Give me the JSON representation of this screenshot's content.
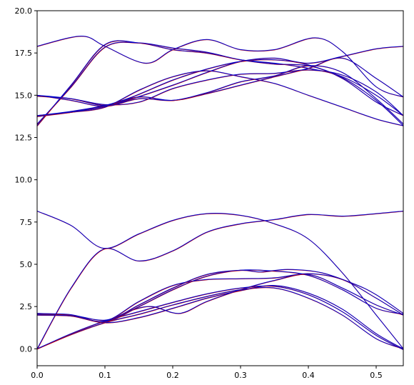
{
  "chart_data": {
    "type": "line",
    "title": "",
    "xlabel": "",
    "ylabel": "",
    "xlim": [
      0.0,
      0.54
    ],
    "ylim": [
      -1.0,
      20.0
    ],
    "x_ticks": [
      {
        "value": 0.0,
        "label": "0.0"
      },
      {
        "value": 0.1,
        "label": "0.1"
      },
      {
        "value": 0.2,
        "label": "0.2"
      },
      {
        "value": 0.3,
        "label": "0.3"
      },
      {
        "value": 0.4,
        "label": "0.4"
      },
      {
        "value": 0.5,
        "label": "0.5"
      }
    ],
    "y_ticks": [
      {
        "value": 0.0,
        "label": "0.0"
      },
      {
        "value": 2.5,
        "label": "2.5"
      },
      {
        "value": 5.0,
        "label": "5.0"
      },
      {
        "value": 7.5,
        "label": "7.5"
      },
      {
        "value": 10.0,
        "label": "10.0"
      },
      {
        "value": 12.5,
        "label": "12.5"
      },
      {
        "value": 15.0,
        "label": "15.0"
      },
      {
        "value": 17.5,
        "label": "17.5"
      },
      {
        "value": 20.0,
        "label": "20.0"
      }
    ],
    "grid": false,
    "series_color_primary": "#0000cc",
    "series_color_overlay": "#cc0000",
    "series": [
      {
        "x": [
          0.0,
          0.05,
          0.1,
          0.15,
          0.2,
          0.25,
          0.3,
          0.35,
          0.4,
          0.45,
          0.5,
          0.54
        ],
        "y": [
          0.0,
          0.85,
          1.55,
          2.05,
          2.6,
          3.1,
          3.5,
          3.6,
          3.0,
          2.0,
          0.6,
          0.0
        ]
      },
      {
        "x": [
          0.0,
          0.05,
          0.1,
          0.15,
          0.2,
          0.25,
          0.3,
          0.35,
          0.4,
          0.45,
          0.5,
          0.54
        ],
        "y": [
          0.0,
          0.9,
          1.65,
          2.2,
          2.75,
          3.25,
          3.6,
          3.7,
          3.2,
          2.2,
          0.8,
          -0.05
        ]
      },
      {
        "x": [
          0.0,
          0.05,
          0.1,
          0.15,
          0.2,
          0.25,
          0.3,
          0.35,
          0.4,
          0.45,
          0.5,
          0.54
        ],
        "y": [
          2.05,
          1.95,
          1.55,
          1.85,
          2.4,
          3.0,
          3.45,
          3.75,
          3.3,
          2.35,
          0.9,
          0.0
        ]
      },
      {
        "x": [
          0.0,
          0.05,
          0.1,
          0.14,
          0.17,
          0.21,
          0.25,
          0.3,
          0.35,
          0.4,
          0.45,
          0.5,
          0.54
        ],
        "y": [
          2.1,
          2.0,
          1.7,
          2.3,
          2.5,
          2.1,
          2.8,
          3.5,
          4.05,
          4.4,
          3.6,
          2.6,
          2.0
        ]
      },
      {
        "x": [
          0.0,
          0.05,
          0.1,
          0.15,
          0.2,
          0.25,
          0.3,
          0.35,
          0.4,
          0.45,
          0.5,
          0.54
        ],
        "y": [
          2.05,
          2.0,
          1.6,
          2.5,
          3.5,
          4.3,
          4.65,
          4.6,
          4.35,
          3.5,
          2.4,
          2.05
        ]
      },
      {
        "x": [
          0.0,
          0.05,
          0.1,
          0.15,
          0.2,
          0.25,
          0.3,
          0.35,
          0.4,
          0.45,
          0.5,
          0.54
        ],
        "y": [
          2.0,
          1.95,
          1.65,
          2.8,
          3.75,
          4.1,
          4.15,
          4.2,
          4.45,
          4.1,
          3.0,
          2.0
        ]
      },
      {
        "x": [
          0.0,
          0.05,
          0.1,
          0.15,
          0.2,
          0.25,
          0.3,
          0.33,
          0.37,
          0.42,
          0.47,
          0.5,
          0.54
        ],
        "y": [
          2.08,
          2.02,
          1.62,
          2.6,
          3.6,
          4.4,
          4.65,
          4.55,
          4.7,
          4.5,
          3.8,
          3.2,
          2.1
        ]
      },
      {
        "x": [
          0.0,
          0.05,
          0.098,
          0.15,
          0.2,
          0.25,
          0.3,
          0.35,
          0.4,
          0.45,
          0.5,
          0.54
        ],
        "y": [
          0.0,
          3.6,
          5.9,
          5.2,
          5.8,
          6.9,
          7.4,
          7.65,
          7.95,
          7.85,
          8.0,
          8.15
        ]
      },
      {
        "x": [
          0.0,
          0.05,
          0.098,
          0.15,
          0.2,
          0.25,
          0.3,
          0.35,
          0.4,
          0.45,
          0.5,
          0.54
        ],
        "y": [
          8.15,
          7.3,
          5.95,
          6.8,
          7.6,
          8.0,
          7.9,
          7.4,
          6.5,
          4.5,
          2.0,
          0.0
        ]
      },
      {
        "x": [
          0.0,
          0.05,
          0.1,
          0.15,
          0.2,
          0.25,
          0.3,
          0.35,
          0.4,
          0.45,
          0.5,
          0.54
        ],
        "y": [
          13.2,
          15.6,
          18.0,
          18.1,
          17.7,
          17.5,
          17.1,
          16.9,
          16.6,
          16.1,
          15.0,
          13.8
        ]
      },
      {
        "x": [
          0.0,
          0.065,
          0.1,
          0.16,
          0.2,
          0.25,
          0.3,
          0.35,
          0.41,
          0.45,
          0.5,
          0.54
        ],
        "y": [
          17.9,
          18.5,
          17.9,
          16.9,
          17.7,
          18.3,
          17.7,
          17.7,
          18.4,
          17.6,
          15.5,
          14.9
        ]
      },
      {
        "x": [
          0.0,
          0.05,
          0.1,
          0.14,
          0.2,
          0.25,
          0.3,
          0.35,
          0.4,
          0.45,
          0.5,
          0.54
        ],
        "y": [
          13.8,
          14.05,
          14.4,
          14.9,
          15.9,
          16.55,
          17.0,
          17.1,
          16.8,
          16.0,
          14.6,
          13.8
        ]
      },
      {
        "x": [
          0.0,
          0.05,
          0.1,
          0.14,
          0.2,
          0.25,
          0.3,
          0.35,
          0.4,
          0.45,
          0.5,
          0.54
        ],
        "y": [
          15.0,
          14.8,
          14.4,
          14.8,
          15.6,
          16.35,
          17.0,
          17.2,
          16.9,
          17.3,
          17.75,
          17.9
        ]
      },
      {
        "x": [
          0.0,
          0.05,
          0.1,
          0.15,
          0.2,
          0.25,
          0.3,
          0.35,
          0.4,
          0.45,
          0.5,
          0.54
        ],
        "y": [
          13.75,
          14.0,
          14.35,
          14.9,
          14.7,
          15.1,
          15.6,
          16.1,
          16.6,
          17.2,
          16.0,
          14.9
        ]
      },
      {
        "x": [
          0.0,
          0.05,
          0.1,
          0.15,
          0.2,
          0.25,
          0.3,
          0.35,
          0.4,
          0.45,
          0.5,
          0.54
        ],
        "y": [
          14.95,
          14.8,
          14.45,
          14.6,
          15.4,
          15.9,
          16.25,
          16.3,
          16.5,
          16.2,
          15.2,
          13.8
        ]
      },
      {
        "x": [
          0.0,
          0.05,
          0.1,
          0.15,
          0.2,
          0.25,
          0.3,
          0.35,
          0.4,
          0.45,
          0.5,
          0.54
        ],
        "y": [
          15.0,
          14.7,
          14.35,
          14.8,
          14.7,
          15.15,
          15.8,
          16.15,
          16.75,
          16.35,
          14.8,
          13.3
        ]
      },
      {
        "x": [
          0.0,
          0.05,
          0.1,
          0.15,
          0.2,
          0.25,
          0.3,
          0.35,
          0.4,
          0.45,
          0.5,
          0.54
        ],
        "y": [
          13.3,
          15.5,
          17.85,
          18.1,
          17.8,
          17.55,
          17.1,
          16.85,
          16.75,
          16.05,
          14.7,
          13.2
        ]
      },
      {
        "x": [
          0.0,
          0.05,
          0.1,
          0.15,
          0.2,
          0.25,
          0.3,
          0.35,
          0.4,
          0.45,
          0.5,
          0.54
        ],
        "y": [
          13.8,
          14.0,
          14.3,
          15.3,
          16.1,
          16.45,
          16.1,
          15.7,
          15.0,
          14.3,
          13.6,
          13.2
        ]
      }
    ]
  }
}
